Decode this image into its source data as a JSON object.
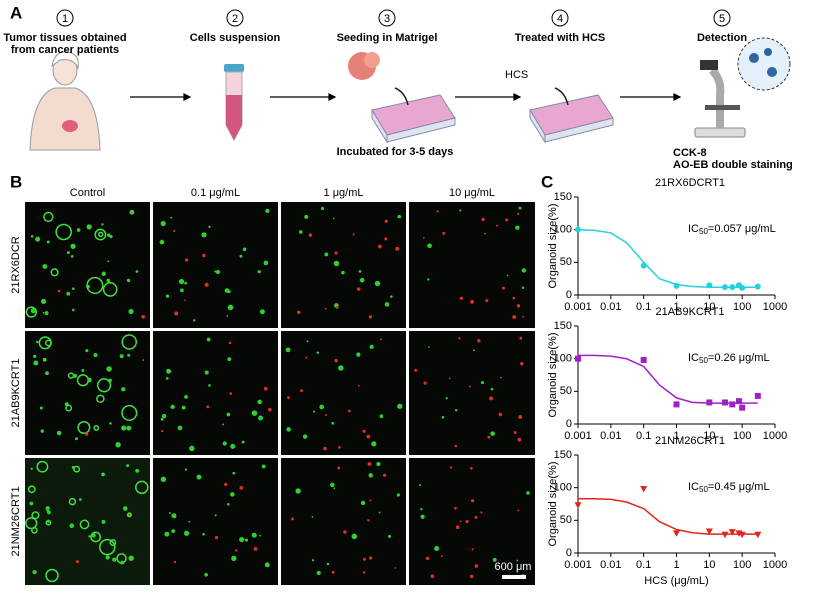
{
  "panel_a": {
    "label": "A",
    "steps": [
      {
        "number": "1",
        "title": [
          "Tumor tissues obtained",
          "from cancer patients"
        ]
      },
      {
        "number": "2",
        "title": [
          "Cells suspension"
        ]
      },
      {
        "number": "3",
        "title": [
          "Seeding in Matrigel"
        ]
      },
      {
        "number": "4",
        "title": [
          "Treated with HCS"
        ]
      },
      {
        "number": "5",
        "title": [
          "Detection"
        ]
      }
    ],
    "incubation": "Incubated for 3-5 days",
    "drug": "HCS",
    "methods": [
      "CCK-8",
      "AO-EB double staining"
    ]
  },
  "panel_b": {
    "label": "B",
    "columns": [
      "Control",
      "0.1 μg/mL",
      "1 μg/mL",
      "10 μg/mL"
    ],
    "rows": [
      "21RX6DCR",
      "21AB9KCRT1",
      "21NM26CRT1"
    ],
    "scale_bar": "600 μm"
  },
  "panel_c_label": "C",
  "chart_data": [
    {
      "type": "scatter",
      "title": "21RX6DCRT1",
      "annotation": {
        "text": "IC",
        "subscript": "50",
        "suffix": "=0.057 μg/mL"
      },
      "y_label": "Organoid size(%)",
      "xlog": true,
      "xlim": [
        0.001,
        1000
      ],
      "xticks": [
        0.001,
        0.01,
        0.1,
        1,
        10,
        100,
        1000
      ],
      "ylim": [
        0,
        150
      ],
      "yticks": [
        0,
        50,
        100,
        150
      ],
      "series": [
        {
          "color": "#22d3de",
          "marker": "circle",
          "x": [
            0.001,
            0.1,
            1,
            10,
            30,
            50,
            80,
            100,
            300
          ],
          "values": [
            100,
            45,
            14,
            15,
            12,
            12,
            15,
            11,
            13
          ]
        },
        {
          "color": "#22d3de",
          "line": true,
          "x": [
            0.001,
            0.003,
            0.01,
            0.03,
            0.1,
            0.3,
            1,
            3,
            10,
            30,
            100,
            300
          ],
          "values": [
            100,
            99,
            95,
            80,
            50,
            25,
            16,
            13,
            12,
            12,
            12,
            12
          ]
        }
      ]
    },
    {
      "type": "scatter",
      "title": "21AB9KCRT1",
      "annotation": {
        "text": "IC",
        "subscript": "50",
        "suffix": "=0.26 μg/mL"
      },
      "y_label": "Organoid size(%)",
      "xlog": true,
      "xlim": [
        0.001,
        1000
      ],
      "xticks": [
        0.001,
        0.01,
        0.1,
        1,
        10,
        100,
        1000
      ],
      "ylim": [
        0,
        150
      ],
      "yticks": [
        0,
        50,
        100,
        150
      ],
      "series": [
        {
          "color": "#a020c8",
          "marker": "square",
          "x": [
            0.001,
            0.1,
            1,
            10,
            30,
            50,
            80,
            100,
            300
          ],
          "values": [
            100,
            98,
            30,
            33,
            33,
            30,
            35,
            25,
            43
          ]
        },
        {
          "color": "#a020c8",
          "line": true,
          "x": [
            0.001,
            0.003,
            0.01,
            0.03,
            0.1,
            0.3,
            1,
            3,
            10,
            30,
            100,
            300
          ],
          "values": [
            105,
            105,
            104,
            100,
            88,
            60,
            40,
            33,
            32,
            32,
            32,
            32
          ]
        }
      ]
    },
    {
      "type": "scatter",
      "title": "21NM26CRT1",
      "annotation": {
        "text": "IC",
        "subscript": "50",
        "suffix": "=0.45 μg/mL"
      },
      "y_label": "Organoid size(%)",
      "x_label": "HCS (μg/mL)",
      "xlog": true,
      "xlim": [
        0.001,
        1000
      ],
      "xticks": [
        0.001,
        0.01,
        0.1,
        1,
        10,
        100,
        1000
      ],
      "ylim": [
        0,
        150
      ],
      "yticks": [
        0,
        50,
        100,
        150
      ],
      "series": [
        {
          "color": "#e0261c",
          "marker": "triangle-down",
          "x": [
            0.001,
            0.1,
            1,
            10,
            30,
            50,
            80,
            100,
            300
          ],
          "values": [
            73,
            98,
            30,
            33,
            28,
            32,
            30,
            28,
            28
          ]
        },
        {
          "color": "#e0261c",
          "line": true,
          "x": [
            0.001,
            0.003,
            0.01,
            0.03,
            0.1,
            0.3,
            1,
            3,
            10,
            30,
            100,
            300
          ],
          "values": [
            83,
            83,
            82,
            78,
            68,
            48,
            36,
            31,
            29,
            29,
            29,
            29
          ]
        }
      ]
    }
  ]
}
